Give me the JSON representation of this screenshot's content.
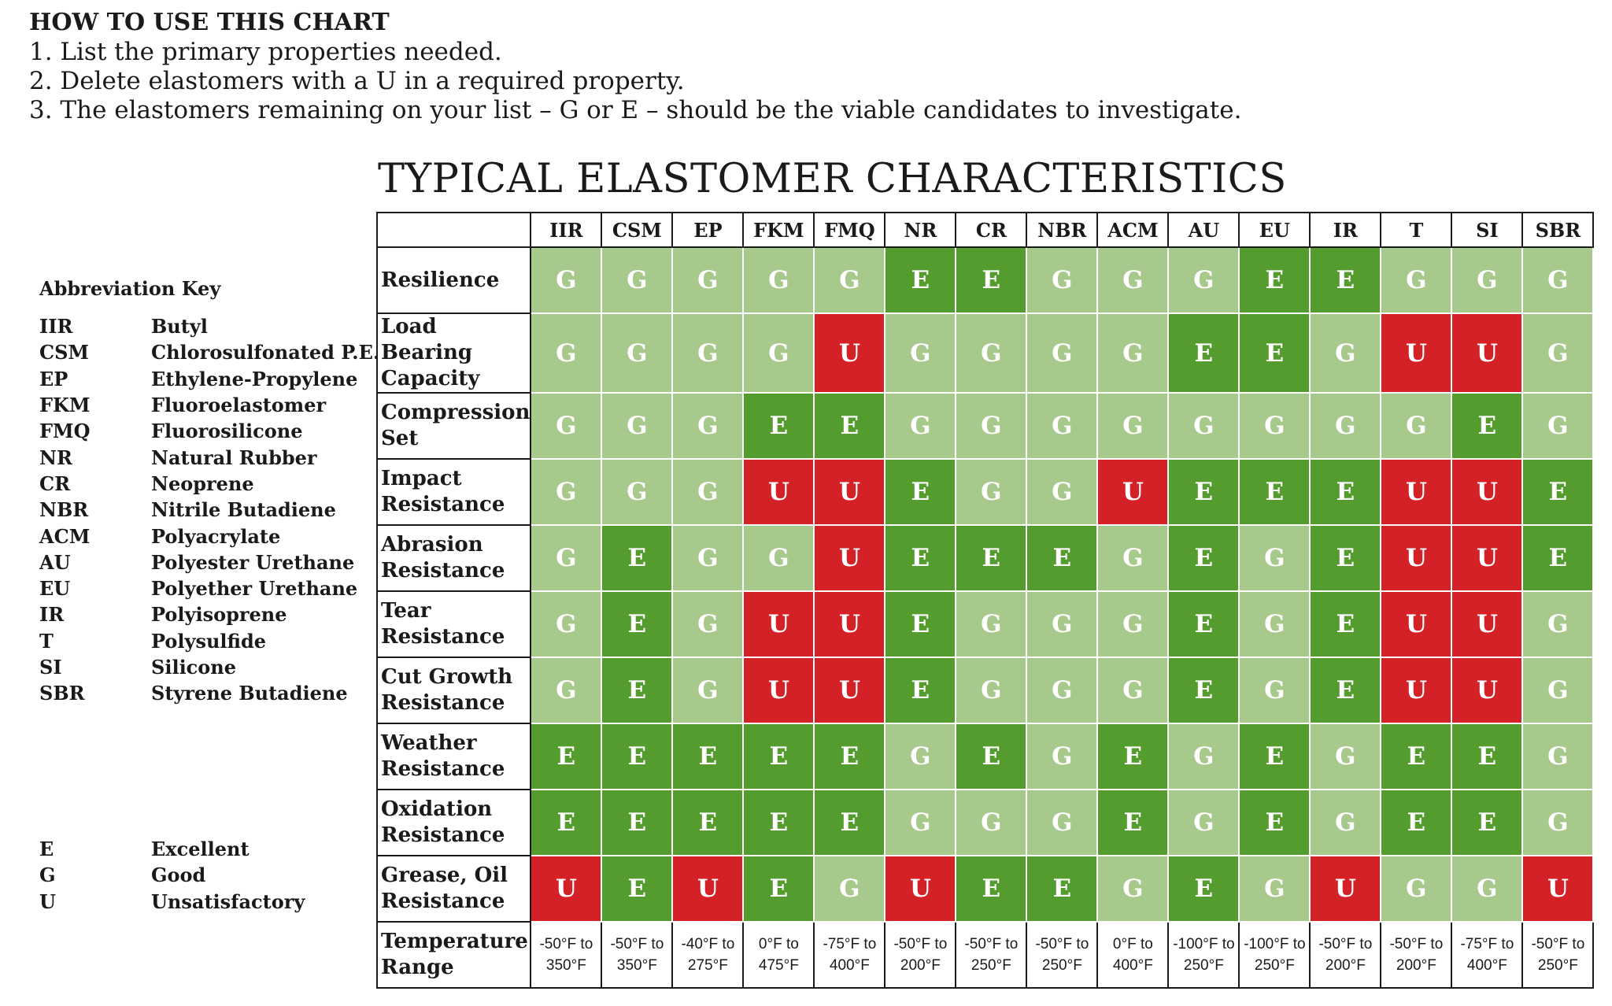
{
  "instructions": {
    "heading": "HOW TO USE THIS CHART",
    "steps": [
      "1.  List the primary properties needed.",
      "2.  Delete elastomers with a U in a required property.",
      "3. The elastomers remaining on your list – G or E – should be the viable candidates to investigate."
    ]
  },
  "title": "TYPICAL ELASTOMER CHARACTERISTICS",
  "key": {
    "title": "Abbreviation Key",
    "abbreviations": [
      {
        "code": "IIR",
        "name": "Butyl"
      },
      {
        "code": "CSM",
        "name": "Chlorosulfonated P.E."
      },
      {
        "code": "EP",
        "name": "Ethylene-Propylene"
      },
      {
        "code": "FKM",
        "name": "Fluoroelastomer"
      },
      {
        "code": "FMQ",
        "name": "Fluorosilicone"
      },
      {
        "code": "NR",
        "name": "Natural Rubber"
      },
      {
        "code": "CR",
        "name": "Neoprene"
      },
      {
        "code": "NBR",
        "name": "Nitrile Butadiene"
      },
      {
        "code": "ACM",
        "name": "Polyacrylate"
      },
      {
        "code": "AU",
        "name": "Polyester Urethane"
      },
      {
        "code": "EU",
        "name": "Polyether  Urethane"
      },
      {
        "code": "IR",
        "name": "Polyisoprene"
      },
      {
        "code": "T",
        "name": "Polysulfide"
      },
      {
        "code": "SI",
        "name": "Silicone"
      },
      {
        "code": "SBR",
        "name": "Styrene Butadiene"
      }
    ],
    "ratings": [
      {
        "code": "E",
        "name": "Excellent"
      },
      {
        "code": "G",
        "name": "Good"
      },
      {
        "code": "U",
        "name": "Unsatisfactory"
      }
    ]
  },
  "colors": {
    "E": "#559c2f",
    "G": "#a7c98b",
    "U": "#d42128"
  },
  "table": {
    "columns": [
      "IIR",
      "CSM",
      "EP",
      "FKM",
      "FMQ",
      "NR",
      "CR",
      "NBR",
      "ACM",
      "AU",
      "EU",
      "IR",
      "T",
      "SI",
      "SBR"
    ],
    "rows": [
      {
        "label": "Resilience",
        "values": [
          "G",
          "G",
          "G",
          "G",
          "G",
          "E",
          "E",
          "G",
          "G",
          "G",
          "E",
          "E",
          "G",
          "G",
          "G"
        ]
      },
      {
        "label": "Load Bearing Capacity",
        "values": [
          "G",
          "G",
          "G",
          "G",
          "U",
          "G",
          "G",
          "G",
          "G",
          "E",
          "E",
          "G",
          "U",
          "U",
          "G"
        ]
      },
      {
        "label": "Compression Set",
        "values": [
          "G",
          "G",
          "G",
          "E",
          "E",
          "G",
          "G",
          "G",
          "G",
          "G",
          "G",
          "G",
          "G",
          "E",
          "G"
        ]
      },
      {
        "label": "Impact Resistance",
        "values": [
          "G",
          "G",
          "G",
          "U",
          "U",
          "E",
          "G",
          "G",
          "U",
          "E",
          "E",
          "E",
          "U",
          "U",
          "E"
        ]
      },
      {
        "label": "Abrasion Resistance",
        "values": [
          "G",
          "E",
          "G",
          "G",
          "U",
          "E",
          "E",
          "E",
          "G",
          "E",
          "G",
          "E",
          "U",
          "U",
          "E"
        ]
      },
      {
        "label": "Tear Resistance",
        "values": [
          "G",
          "E",
          "G",
          "U",
          "U",
          "E",
          "G",
          "G",
          "G",
          "E",
          "G",
          "E",
          "U",
          "U",
          "G"
        ]
      },
      {
        "label": "Cut Growth Resistance",
        "values": [
          "G",
          "E",
          "G",
          "U",
          "U",
          "E",
          "G",
          "G",
          "G",
          "E",
          "G",
          "E",
          "U",
          "U",
          "G"
        ]
      },
      {
        "label": "Weather Resistance",
        "values": [
          "E",
          "E",
          "E",
          "E",
          "E",
          "G",
          "E",
          "G",
          "E",
          "G",
          "E",
          "G",
          "E",
          "E",
          "G"
        ]
      },
      {
        "label": "Oxidation Resistance",
        "values": [
          "E",
          "E",
          "E",
          "E",
          "E",
          "G",
          "G",
          "G",
          "E",
          "G",
          "E",
          "G",
          "E",
          "E",
          "G"
        ]
      },
      {
        "label": "Grease, Oil Resistance",
        "values": [
          "U",
          "E",
          "U",
          "E",
          "G",
          "U",
          "E",
          "E",
          "G",
          "E",
          "G",
          "U",
          "G",
          "G",
          "U"
        ]
      }
    ],
    "temperature_label": "Temperature Range",
    "temperature": [
      "-50°F to\n350°F",
      "-50°F to\n350°F",
      "-40°F to\n275°F",
      "0°F to\n475°F",
      "-75°F to\n400°F",
      "-50°F to\n200°F",
      "-50°F to\n250°F",
      "-50°F to\n250°F",
      "0°F to\n400°F",
      "-100°F to\n250°F",
      "-100°F to\n250°F",
      "-50°F to\n200°F",
      "-50°F to\n200°F",
      "-75°F to\n400°F",
      "-50°F to\n250°F"
    ]
  }
}
